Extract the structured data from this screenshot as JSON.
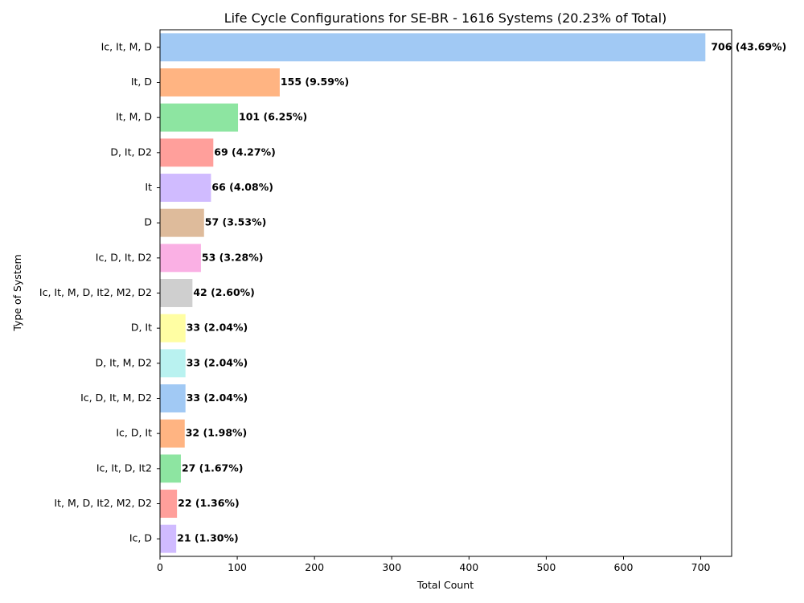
{
  "chart_data": {
    "type": "bar",
    "orientation": "horizontal",
    "title": "Life Cycle Configurations for SE-BR - 1616 Systems (20.23% of Total)",
    "xlabel": "Total Count",
    "ylabel": "Type of System",
    "xlim": [
      0,
      740
    ],
    "xticks": [
      0,
      100,
      200,
      300,
      400,
      500,
      600,
      700
    ],
    "grid": false,
    "legend": "none",
    "categories": [
      "Ic, It, M, D",
      "It, D",
      "It, M, D",
      "D, It, D2",
      "It",
      "D",
      "Ic, D, It, D2",
      "Ic, It, M, D, It2, M2, D2",
      "D, It",
      "D, It, M, D2",
      "Ic, D, It, M, D2",
      "Ic, D, It",
      "Ic, It, D, It2",
      "It, M, D, It2, M2, D2",
      "Ic, D"
    ],
    "values": [
      706,
      155,
      101,
      69,
      66,
      57,
      53,
      42,
      33,
      33,
      33,
      32,
      27,
      22,
      21
    ],
    "data_labels": [
      "706 (43.69%)",
      "155 (9.59%)",
      "101 (6.25%)",
      "69 (4.27%)",
      "66 (4.08%)",
      "57 (3.53%)",
      "53 (3.28%)",
      "42 (2.60%)",
      "33 (2.04%)",
      "33 (2.04%)",
      "33 (2.04%)",
      "32 (1.98%)",
      "27 (1.67%)",
      "22 (1.36%)",
      "21 (1.30%)"
    ],
    "colors": [
      "#a1c9f4",
      "#ffb482",
      "#8de5a1",
      "#ff9f9b",
      "#d0bbff",
      "#debb9b",
      "#fab0e4",
      "#cfcfcf",
      "#fffea3",
      "#b9f2f0",
      "#a1c9f4",
      "#ffb482",
      "#8de5a1",
      "#ff9f9b",
      "#d0bbff"
    ]
  }
}
